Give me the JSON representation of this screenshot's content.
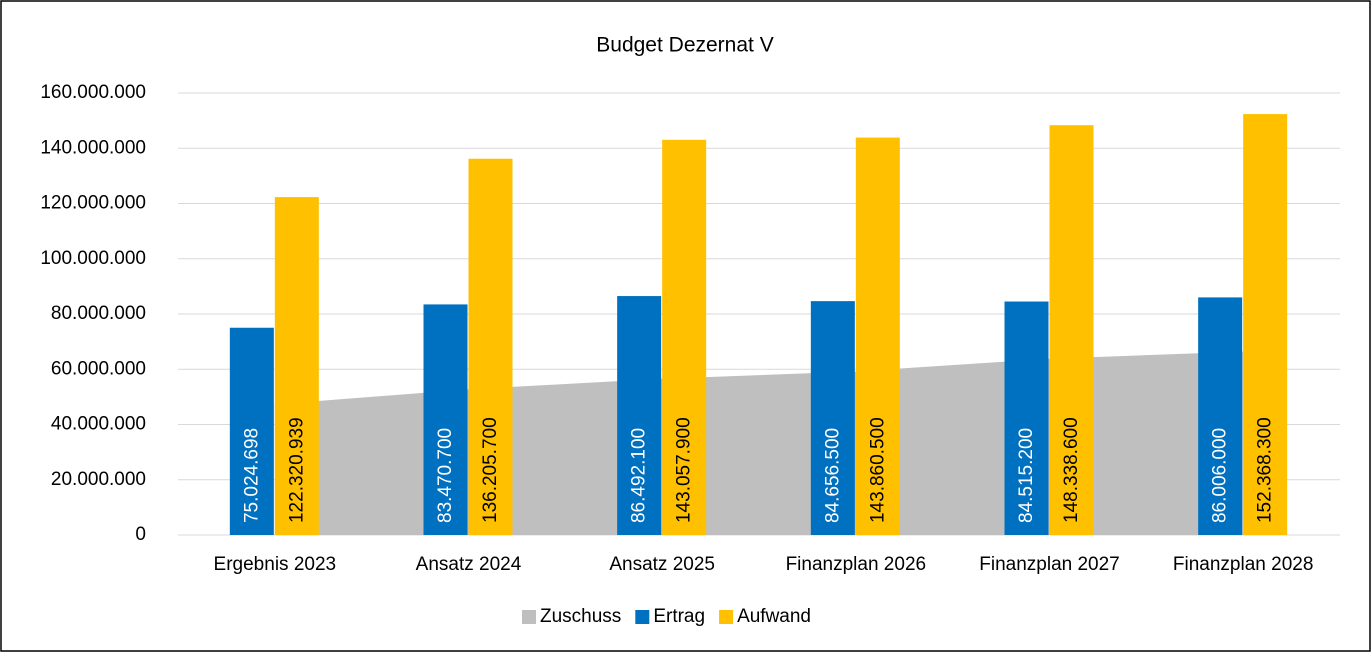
{
  "chart_data": {
    "type": "bar",
    "title": "Budget Dezernat V",
    "categories": [
      "Ergebnis 2023",
      "Ansatz 2024",
      "Ansatz 2025",
      "Finanzplan 2026",
      "Finanzplan 2027",
      "Finanzplan 2028"
    ],
    "series": [
      {
        "name": "Zuschuss",
        "type": "area",
        "color": "#bfbfbf",
        "values": [
          47296241,
          52735000,
          56565800,
          59204000,
          63823400,
          66362300
        ]
      },
      {
        "name": "Ertrag",
        "type": "bar",
        "color": "#0070c0",
        "values": [
          75024698,
          83470700,
          86492100,
          84656500,
          84515200,
          86006000
        ],
        "value_labels": [
          "75.024.698",
          "83.470.700",
          "86.492.100",
          "84.656.500",
          "84.515.200",
          "86.006.000"
        ]
      },
      {
        "name": "Aufwand",
        "type": "bar",
        "color": "#ffc000",
        "values": [
          122320939,
          136205700,
          143057900,
          143860500,
          148338600,
          152368300
        ],
        "value_labels": [
          "122.320.939",
          "136.205.700",
          "143.057.900",
          "143.860.500",
          "148.338.600",
          "152.368.300"
        ]
      }
    ],
    "ylim": [
      0,
      160000000
    ],
    "yticks": [
      0,
      {
        "value": 20000000,
        "label": "20.000.000"
      },
      {
        "value": 40000000,
        "label": "40.000.000"
      },
      {
        "value": 60000000,
        "label": "60.000.000"
      },
      {
        "value": 80000000,
        "label": "80.000.000"
      },
      {
        "value": 100000000,
        "label": "100.000.000"
      },
      {
        "value": 120000000,
        "label": "120.000.000"
      },
      {
        "value": 140000000,
        "label": "140.000.000"
      },
      {
        "value": 160000000,
        "label": "160.000.000"
      }
    ],
    "grid": true,
    "legend": "bottom"
  }
}
